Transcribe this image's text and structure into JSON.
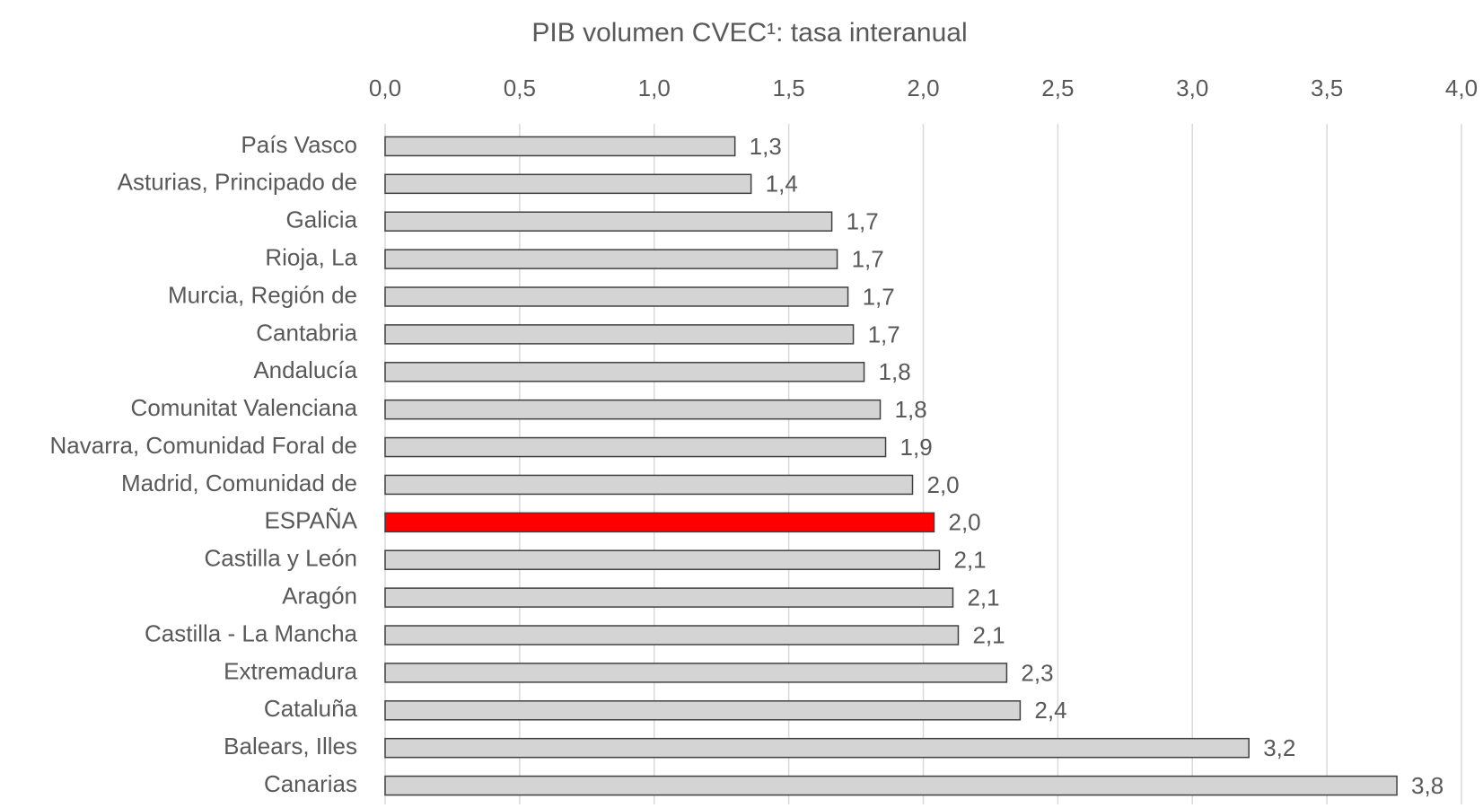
{
  "chart_data": {
    "type": "barh",
    "title": "PIB volumen CVEC¹: tasa interanual",
    "categories": [
      "País Vasco",
      "Asturias, Principado de",
      "Galicia",
      "Rioja, La",
      "Murcia, Región de",
      "Cantabria",
      "Andalucía",
      "Comunitat Valenciana",
      "Navarra, Comunidad Foral de",
      "Madrid, Comunidad de",
      "ESPAÑA",
      "Castilla y León",
      "Aragón",
      "Castilla - La Mancha",
      "Extremadura",
      "Cataluña",
      "Balears, Illes",
      "Canarias"
    ],
    "values": [
      1.3,
      1.36,
      1.66,
      1.68,
      1.72,
      1.74,
      1.78,
      1.84,
      1.86,
      1.96,
      2.04,
      2.06,
      2.11,
      2.13,
      2.31,
      2.36,
      3.21,
      3.76
    ],
    "value_labels": [
      "1,3",
      "1,4",
      "1,7",
      "1,7",
      "1,7",
      "1,7",
      "1,8",
      "1,8",
      "1,9",
      "2,0",
      "2,0",
      "2,1",
      "2,1",
      "2,1",
      "2,3",
      "2,4",
      "3,2",
      "3,8"
    ],
    "colors": [
      "#d4d4d4",
      "#d4d4d4",
      "#d4d4d4",
      "#d4d4d4",
      "#d4d4d4",
      "#d4d4d4",
      "#d4d4d4",
      "#d4d4d4",
      "#d4d4d4",
      "#d4d4d4",
      "#ff0000",
      "#d4d4d4",
      "#d4d4d4",
      "#d4d4d4",
      "#d4d4d4",
      "#d4d4d4",
      "#d4d4d4",
      "#d4d4d4"
    ],
    "xlim": [
      0,
      4
    ],
    "xticks": [
      {
        "value": 0,
        "label": "0,0"
      },
      {
        "value": 0.5,
        "label": "0,5"
      },
      {
        "value": 1,
        "label": "1,0"
      },
      {
        "value": 1.5,
        "label": "1,5"
      },
      {
        "value": 2,
        "label": "2,0"
      },
      {
        "value": 2.5,
        "label": "2,5"
      },
      {
        "value": 3,
        "label": "3,0"
      },
      {
        "value": 3.5,
        "label": "3,5"
      },
      {
        "value": 4,
        "label": "4,0"
      }
    ],
    "grid": true
  }
}
